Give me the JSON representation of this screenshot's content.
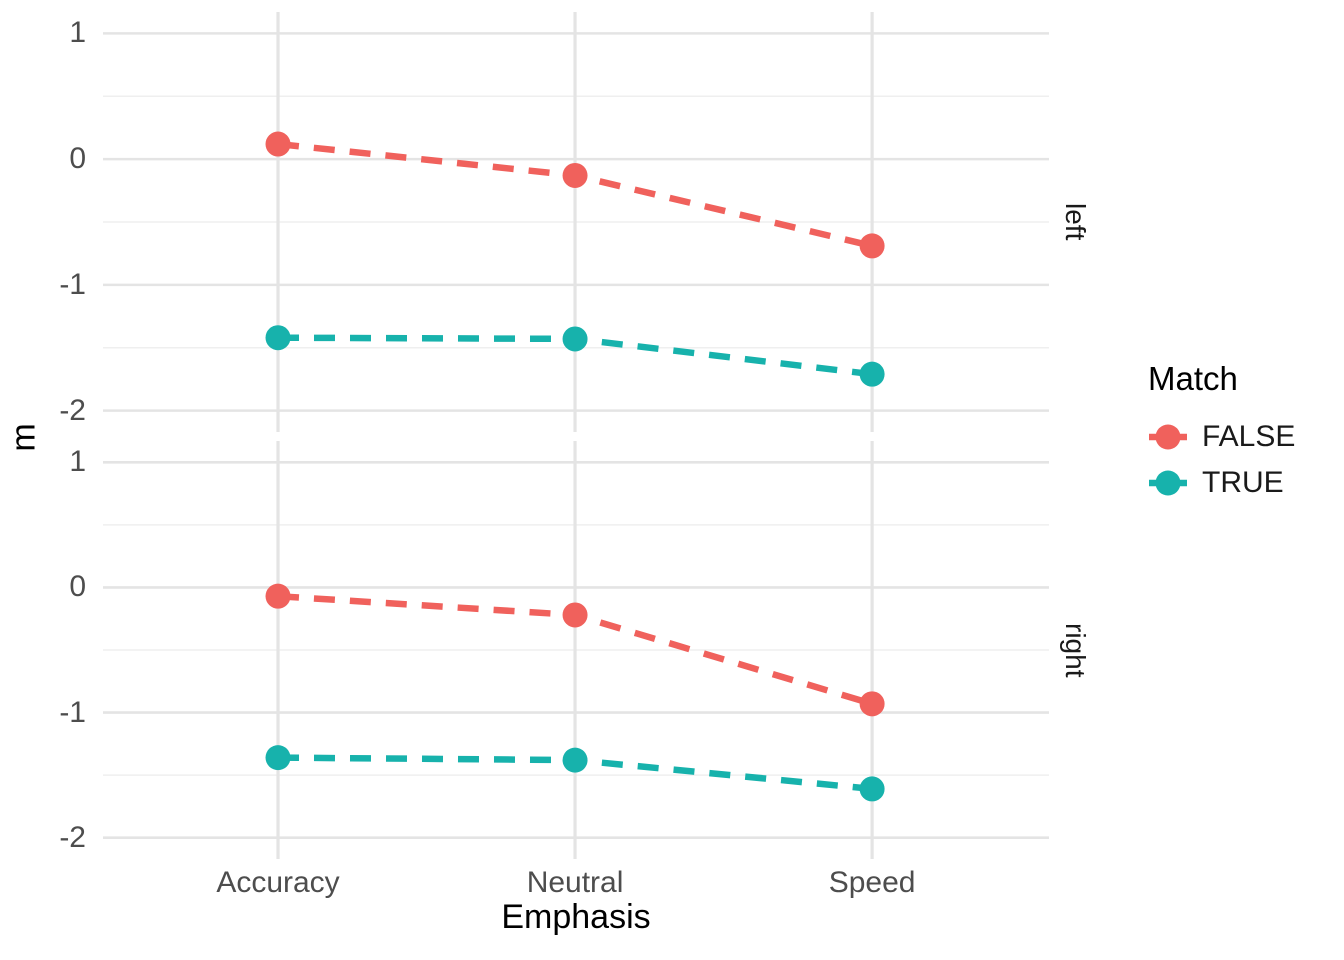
{
  "figure": {
    "background": "#ffffff",
    "grid_major_color": "#e4e4e4",
    "grid_minor_color": "#efefef"
  },
  "axes": {
    "y_title": "m",
    "x_title": "Emphasis",
    "x_tick_labels": [
      "Accuracy",
      "Neutral",
      "Speed"
    ],
    "y_tick_labels": [
      "1",
      "0",
      "-1",
      "-2"
    ],
    "y_tick_values": [
      1,
      0,
      -1,
      -2
    ]
  },
  "facets": [
    {
      "label": "left"
    },
    {
      "label": "right"
    }
  ],
  "legend": {
    "title": "Match",
    "items": [
      {
        "label": "FALSE",
        "color": "#f0615c"
      },
      {
        "label": "TRUE",
        "color": "#17b2ac"
      }
    ]
  },
  "chart_data": {
    "type": "line",
    "style": "dashed lines with point markers, ggplot-style faceted plot",
    "facet_variable_values": [
      "left",
      "right"
    ],
    "categories": [
      "Accuracy",
      "Neutral",
      "Speed"
    ],
    "series": [
      {
        "name": "FALSE",
        "facet": "left",
        "color": "#f0615c",
        "values": [
          0.12,
          -0.13,
          -0.69
        ]
      },
      {
        "name": "TRUE",
        "facet": "left",
        "color": "#17b2ac",
        "values": [
          -1.42,
          -1.43,
          -1.71
        ]
      },
      {
        "name": "FALSE",
        "facet": "right",
        "color": "#f0615c",
        "values": [
          -0.07,
          -0.22,
          -0.93
        ]
      },
      {
        "name": "TRUE",
        "facet": "right",
        "color": "#17b2ac",
        "values": [
          -1.36,
          -1.38,
          -1.61
        ]
      }
    ],
    "title": "",
    "xlabel": "Emphasis",
    "ylabel": "m",
    "ylim": [
      -2.17,
      1.17
    ],
    "grid": {
      "major": [
        1,
        0,
        -1,
        -2
      ],
      "minor": [
        0.5,
        -0.5,
        -1.5
      ]
    },
    "legend_position": "right",
    "legend_title": "Match"
  }
}
